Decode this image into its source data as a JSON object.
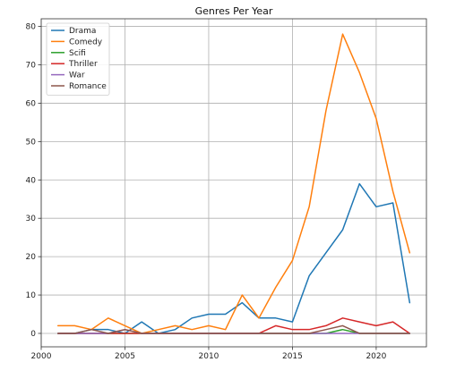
{
  "chart_data": {
    "type": "line",
    "title": "Genres Per Year",
    "xlabel": "",
    "ylabel": "",
    "xlim": [
      2000,
      2023
    ],
    "ylim": [
      -3.5,
      82
    ],
    "x_ticks": [
      2000,
      2005,
      2010,
      2015,
      2020
    ],
    "y_ticks": [
      0,
      10,
      20,
      30,
      40,
      50,
      60,
      70,
      80
    ],
    "grid": true,
    "legend_position": "top-left",
    "x": [
      2001,
      2002,
      2003,
      2004,
      2005,
      2006,
      2007,
      2008,
      2009,
      2010,
      2011,
      2012,
      2013,
      2014,
      2015,
      2016,
      2017,
      2018,
      2019,
      2020,
      2021,
      2022
    ],
    "series": [
      {
        "name": "Drama",
        "color": "#1f77b4",
        "values": [
          0,
          0,
          1,
          1,
          0,
          3,
          0,
          1,
          4,
          5,
          5,
          8,
          4,
          4,
          3,
          15,
          21,
          27,
          39,
          33,
          34,
          8
        ]
      },
      {
        "name": "Comedy",
        "color": "#ff7f0e",
        "values": [
          2,
          2,
          1,
          4,
          2,
          0,
          1,
          2,
          1,
          2,
          1,
          10,
          4,
          12,
          19,
          33,
          58,
          78,
          68,
          56,
          37,
          21
        ]
      },
      {
        "name": "Scifi",
        "color": "#2ca02c",
        "values": [
          0,
          0,
          0,
          0,
          0,
          0,
          0,
          0,
          0,
          0,
          0,
          0,
          0,
          0,
          0,
          0,
          0,
          1,
          0,
          0,
          0,
          0
        ]
      },
      {
        "name": "Thriller",
        "color": "#d62728",
        "values": [
          0,
          0,
          0,
          0,
          0,
          0,
          0,
          0,
          0,
          0,
          0,
          0,
          0,
          2,
          1,
          1,
          2,
          4,
          3,
          2,
          3,
          0
        ]
      },
      {
        "name": "War",
        "color": "#9467bd",
        "values": [
          0,
          0,
          0,
          0,
          1,
          0,
          0,
          0,
          0,
          0,
          0,
          0,
          0,
          0,
          0,
          0,
          0,
          0,
          0,
          0,
          0,
          0
        ]
      },
      {
        "name": "Romance",
        "color": "#8c564b",
        "values": [
          0,
          0,
          1,
          0,
          1,
          0,
          0,
          0,
          0,
          0,
          0,
          0,
          0,
          0,
          0,
          0,
          1,
          2,
          0,
          0,
          0,
          0
        ]
      }
    ]
  }
}
